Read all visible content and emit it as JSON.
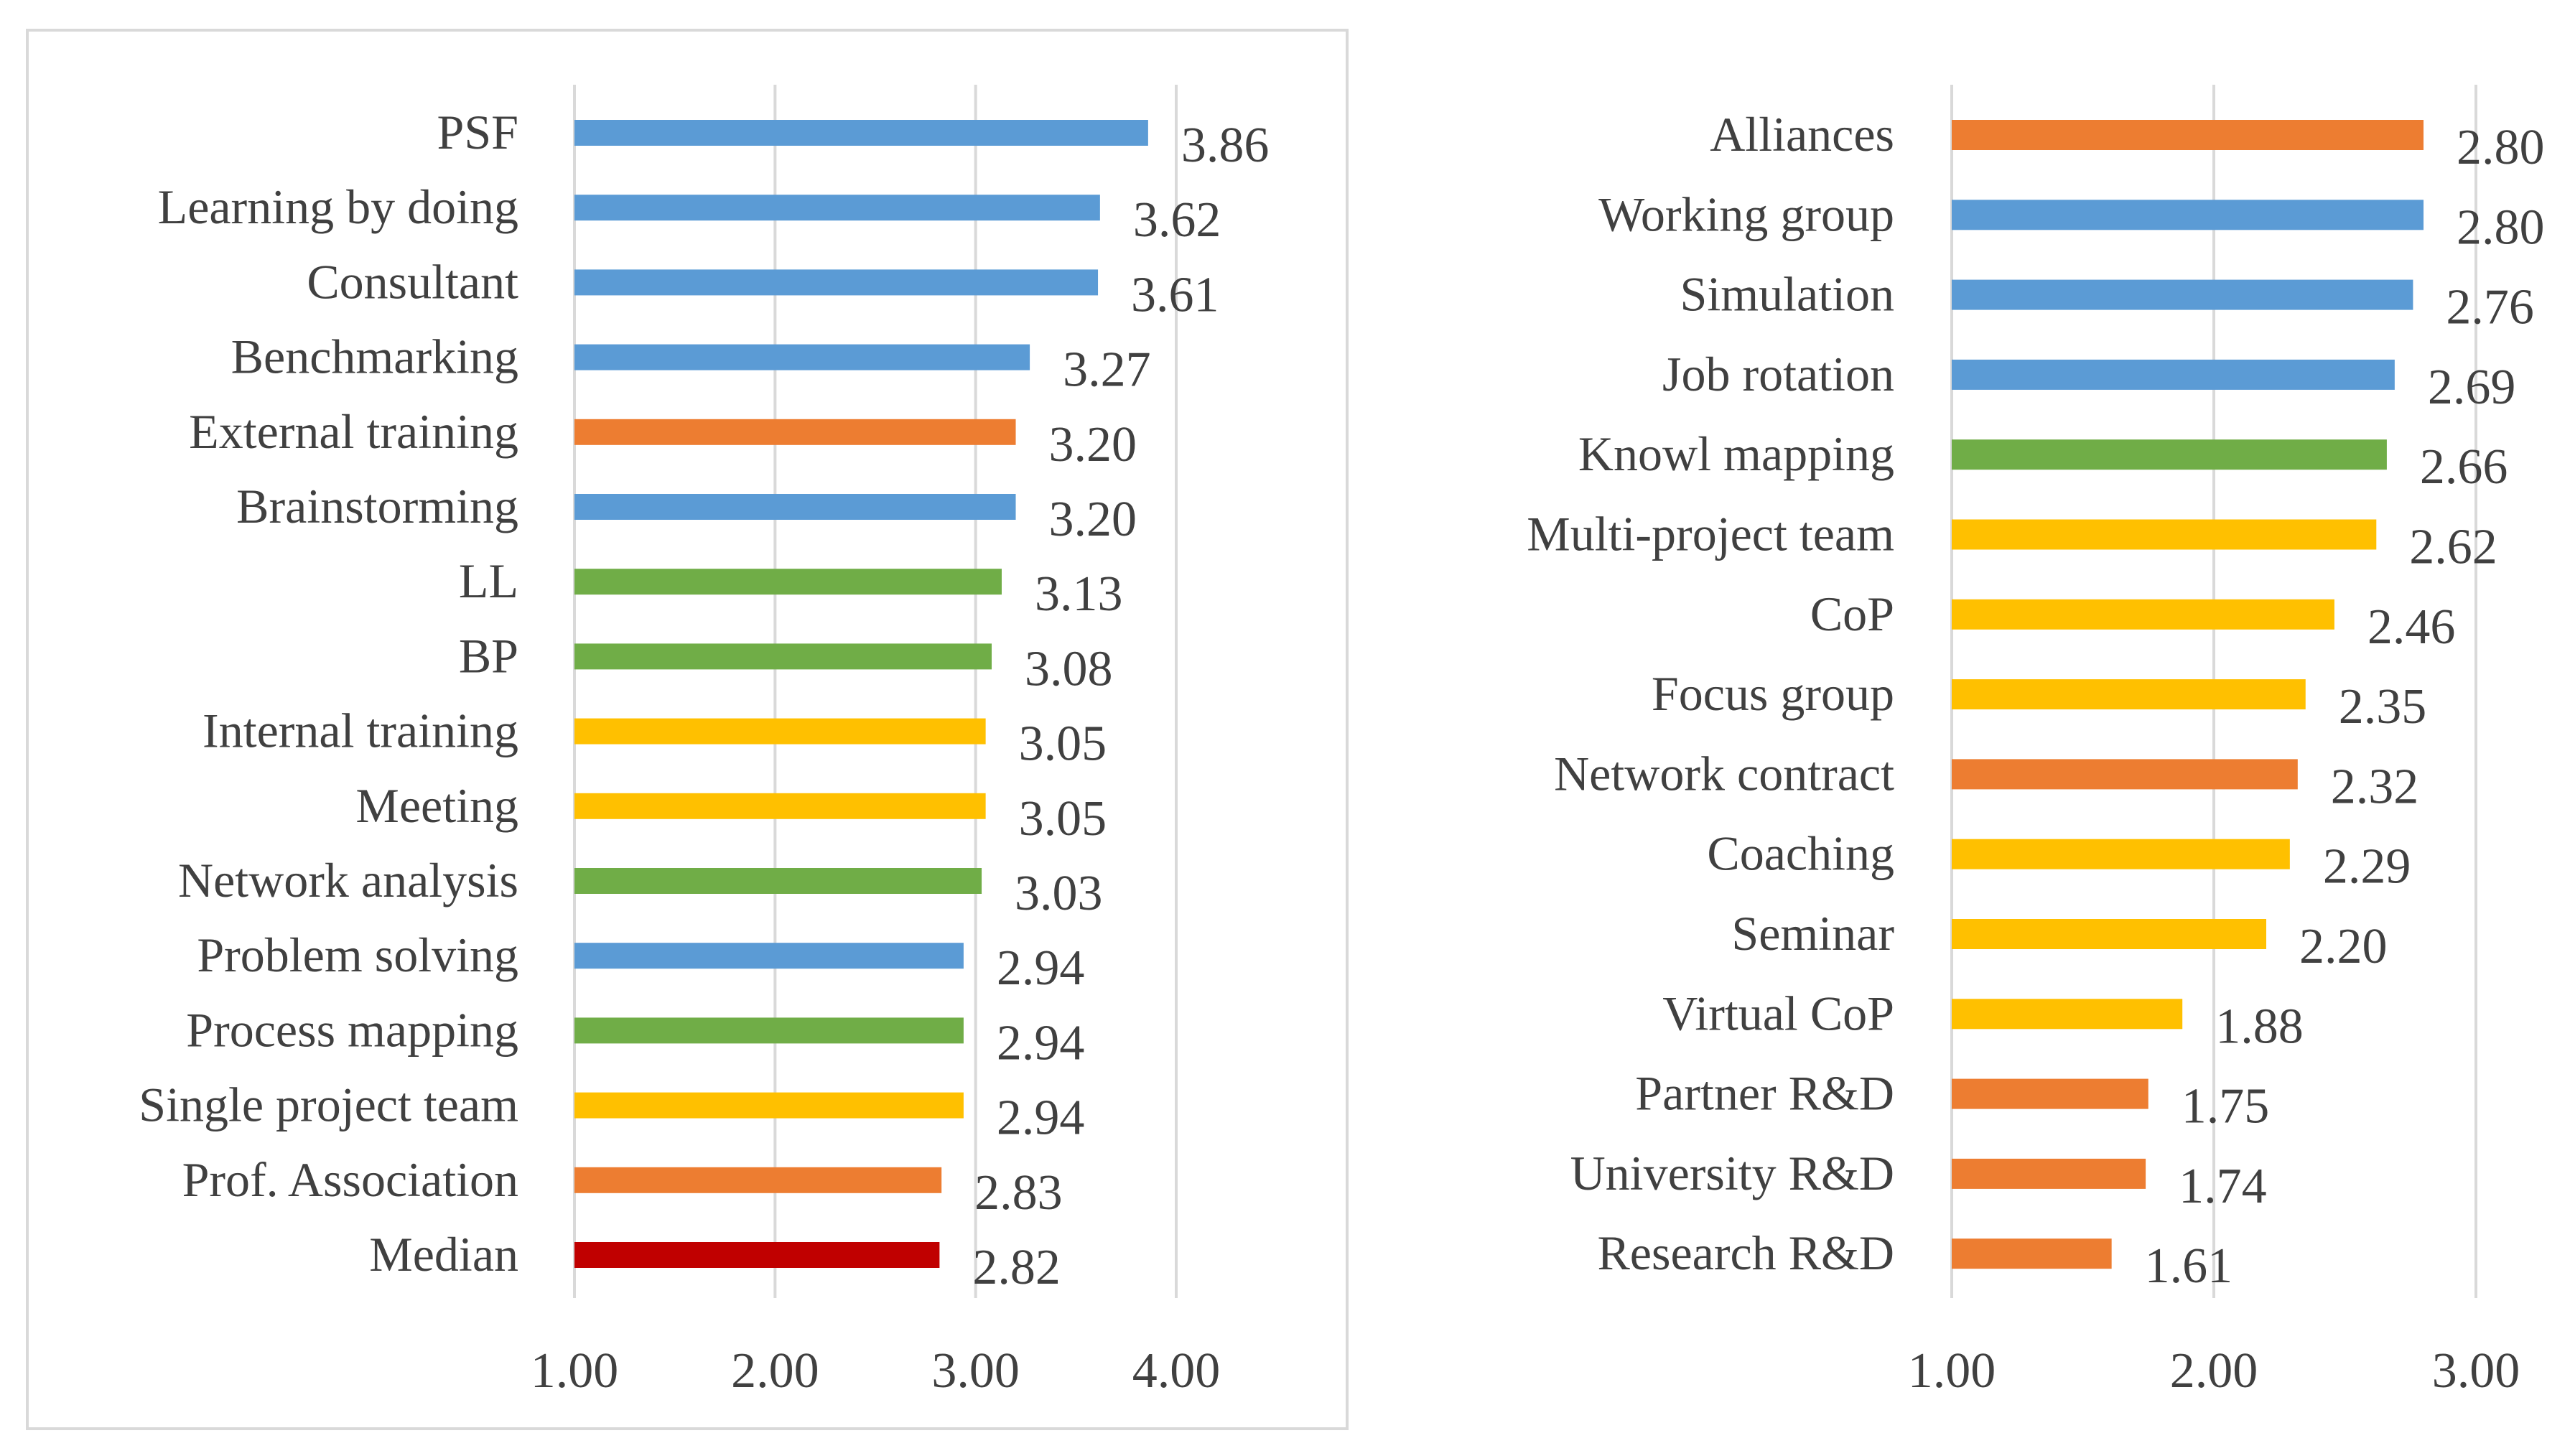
{
  "chart_data": [
    {
      "type": "bar",
      "orientation": "horizontal",
      "title": "",
      "xlabel": "",
      "ylabel": "",
      "xlim": [
        1.0,
        4.0
      ],
      "xticks": [
        "1.00",
        "2.00",
        "3.00",
        "4.00"
      ],
      "grid": true,
      "bordered": true,
      "categories": [
        "PSF",
        "Learning by doing",
        "Consultant",
        "Benchmarking",
        "External training",
        "Brainstorming",
        "LL",
        "BP",
        "Internal training",
        "Meeting",
        "Network analysis",
        "Problem solving",
        "Process mapping",
        "Single project team",
        "Prof. Association",
        "Median"
      ],
      "values": [
        3.86,
        3.62,
        3.61,
        3.27,
        3.2,
        3.2,
        3.13,
        3.08,
        3.05,
        3.05,
        3.03,
        2.94,
        2.94,
        2.94,
        2.83,
        2.82
      ],
      "value_labels": [
        "3.86",
        "3.62",
        "3.61",
        "3.27",
        "3.20",
        "3.20",
        "3.13",
        "3.08",
        "3.05",
        "3.05",
        "3.03",
        "2.94",
        "2.94",
        "2.94",
        "2.83",
        "2.82"
      ],
      "colors": [
        "#5b9bd5",
        "#5b9bd5",
        "#5b9bd5",
        "#5b9bd5",
        "#ed7d31",
        "#5b9bd5",
        "#70ad47",
        "#70ad47",
        "#ffc000",
        "#ffc000",
        "#70ad47",
        "#5b9bd5",
        "#70ad47",
        "#ffc000",
        "#ed7d31",
        "#c00000"
      ]
    },
    {
      "type": "bar",
      "orientation": "horizontal",
      "title": "",
      "xlabel": "",
      "ylabel": "",
      "xlim": [
        1.0,
        3.0
      ],
      "xticks": [
        "1.00",
        "2.00",
        "3.00"
      ],
      "grid": true,
      "bordered": false,
      "categories": [
        "Alliances",
        "Working group",
        "Simulation",
        "Job rotation",
        "Knowl mapping",
        "Multi-project team",
        "CoP",
        "Focus group",
        "Network contract",
        "Coaching",
        "Seminar",
        "Virtual CoP",
        "Partner R&D",
        "University R&D",
        "Research R&D"
      ],
      "values": [
        2.8,
        2.8,
        2.76,
        2.69,
        2.66,
        2.62,
        2.46,
        2.35,
        2.32,
        2.29,
        2.2,
        1.88,
        1.75,
        1.74,
        1.61
      ],
      "value_labels": [
        "2.80",
        "2.80",
        "2.76",
        "2.69",
        "2.66",
        "2.62",
        "2.46",
        "2.35",
        "2.32",
        "2.29",
        "2.20",
        "1.88",
        "1.75",
        "1.74",
        "1.61"
      ],
      "colors": [
        "#ed7d31",
        "#5b9bd5",
        "#5b9bd5",
        "#5b9bd5",
        "#70ad47",
        "#ffc000",
        "#ffc000",
        "#ffc000",
        "#ed7d31",
        "#ffc000",
        "#ffc000",
        "#ffc000",
        "#ed7d31",
        "#ed7d31",
        "#ed7d31"
      ]
    }
  ],
  "colors": {
    "gridline": "#d9d9d9",
    "text": "#404040",
    "panel_border": "#d9d9d9"
  }
}
